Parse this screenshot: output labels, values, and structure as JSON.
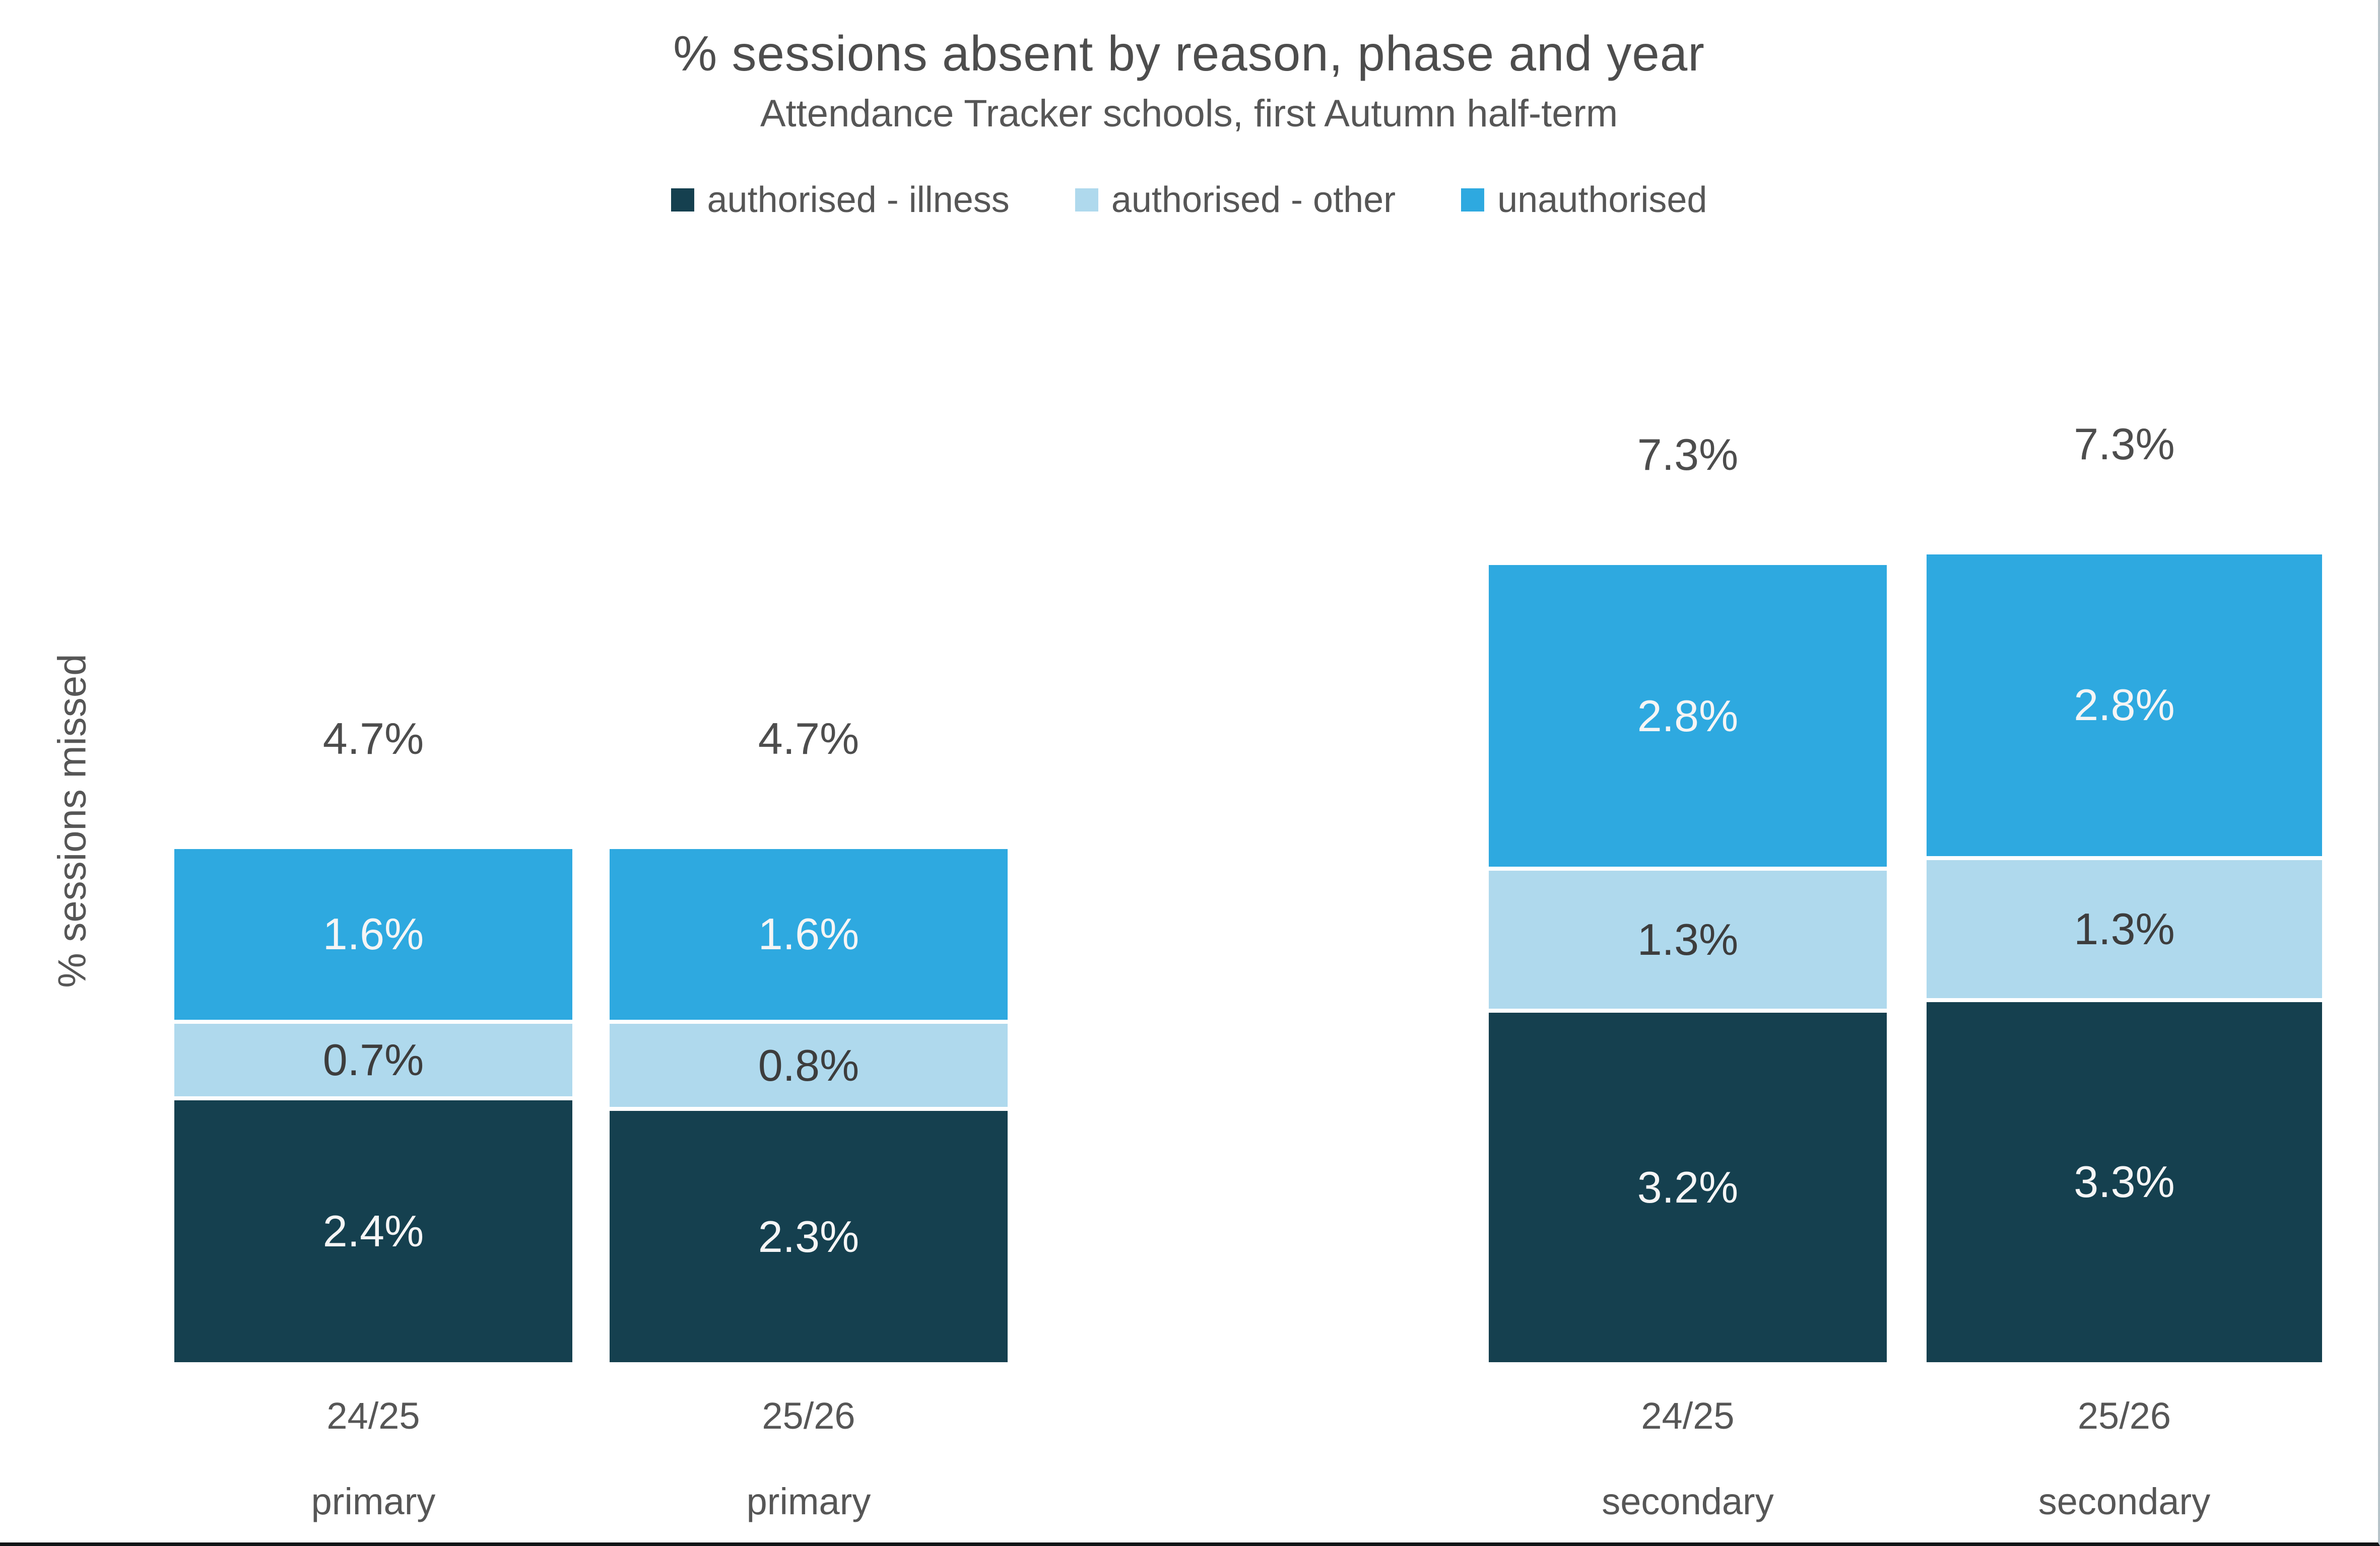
{
  "title": "% sessions absent by reason, phase and year",
  "subtitle": "Attendance Tracker schools, first Autumn half-term",
  "y_axis_label": "% sessions missed",
  "colors": {
    "authorised_illness": "#15404f",
    "authorised_other": "#afd9ed",
    "unauthorised": "#2ea9e0",
    "text_gray": "#4d4d4d",
    "label_on_dark": "#f5f5f5",
    "label_on_light": "#3d3d3d",
    "separator": "#ffffff"
  },
  "legend": [
    {
      "label": "authorised - illness",
      "color": "#15404f"
    },
    {
      "label": "authorised - other",
      "color": "#afd9ed"
    },
    {
      "label": "unauthorised",
      "color": "#2ea9e0"
    }
  ],
  "chart_data": {
    "type": "bar",
    "stacked": true,
    "unit": "%",
    "title": "% sessions absent by reason, phase and year",
    "subtitle": "Attendance Tracker schools, first Autumn half-term",
    "ylabel": "% sessions missed",
    "xlabel": "",
    "grid": false,
    "axis_lines": "none",
    "legend_position": "top",
    "ylim": [
      0,
      8.4
    ],
    "categories": [
      {
        "year": "24/25",
        "phase": "primary"
      },
      {
        "year": "25/26",
        "phase": "primary"
      },
      {
        "year": "24/25",
        "phase": "secondary"
      },
      {
        "year": "25/26",
        "phase": "secondary"
      }
    ],
    "series": [
      {
        "name": "authorised - illness",
        "color": "#15404f",
        "values": [
          2.4,
          2.3,
          3.2,
          3.3
        ],
        "labels": [
          "2.4%",
          "2.3%",
          "3.2%",
          "3.3%"
        ]
      },
      {
        "name": "authorised - other",
        "color": "#afd9ed",
        "values": [
          0.7,
          0.8,
          1.3,
          1.3
        ],
        "labels": [
          "0.7%",
          "0.8%",
          "1.3%",
          "1.3%"
        ]
      },
      {
        "name": "unauthorised",
        "color": "#2ea9e0",
        "values": [
          1.6,
          1.6,
          2.8,
          2.8
        ],
        "labels": [
          "1.6%",
          "1.6%",
          "2.8%",
          "2.8%"
        ]
      }
    ],
    "totals": [
      "4.7%",
      "4.7%",
      "7.3%",
      "7.3%"
    ]
  }
}
